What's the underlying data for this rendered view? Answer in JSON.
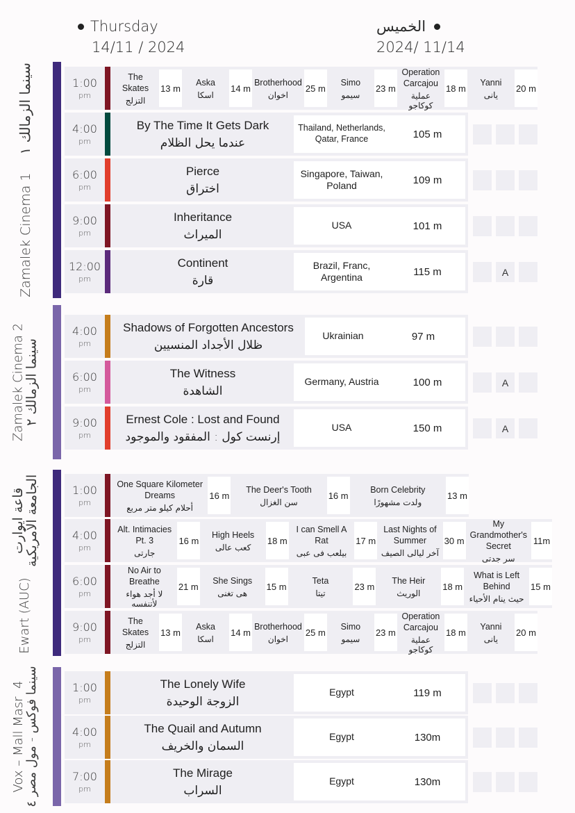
{
  "header": {
    "en_day": "Thursday",
    "en_date": "14/11 / 2024",
    "ar_day": "الخميس",
    "ar_date": "2024/ 11/14"
  },
  "colors": {
    "venue_dark": "#3e2a7c",
    "venue_light": "#7a66aa",
    "maroon": "#7e1624",
    "teal": "#024a3e",
    "red": "#e13e2c",
    "purple": "#5b2a7b",
    "orange": "#c57d1c",
    "pink": "#d45a9c",
    "row_bg": "#efeef3"
  },
  "venues": [
    {
      "name_en": "Zamalek Cinema 1",
      "name_ar": "سينما الزمالك ١",
      "screenings": [
        {
          "time": "1:00",
          "ampm": "pm",
          "type": "shorts",
          "films": [
            {
              "en": "The Skates",
              "ar": "التزلج",
              "dur": "13 m"
            },
            {
              "en": "Aska",
              "ar": "اسكا",
              "dur": "14 m"
            },
            {
              "en": "Brotherhood",
              "ar": "اخوان",
              "dur": "25 m"
            },
            {
              "en": "Simo",
              "ar": "سيمو",
              "dur": "23 m"
            },
            {
              "en": "Operation Carcajou",
              "ar": "عملية كوكاجو",
              "dur": "18 m"
            },
            {
              "en": "Yanni",
              "ar": "يانى",
              "dur": "20 m"
            }
          ]
        },
        {
          "time": "4:00",
          "ampm": "pm",
          "title_en": "By The Time It Gets Dark",
          "title_ar": "عندما يحل الظلام",
          "country": "Thailand, Netherlands, Qatar, France",
          "duration": "105 m",
          "badges": [
            "",
            "",
            ""
          ]
        },
        {
          "time": "6:00",
          "ampm": "pm",
          "title_en": "Pierce",
          "title_ar": "اختراق",
          "country": "Singapore, Taiwan, Poland",
          "duration": "109 m",
          "badges": [
            "",
            "",
            ""
          ]
        },
        {
          "time": "9:00",
          "ampm": "pm",
          "title_en": "Inheritance",
          "title_ar": "الميراث",
          "country": "USA",
          "duration": "101 m",
          "badges": [
            "",
            "",
            ""
          ]
        },
        {
          "time": "12:00",
          "ampm": "pm",
          "title_en": "Continent",
          "title_ar": "قارة",
          "country": "Brazil, Franc, Argentina",
          "duration": "115 m",
          "badges": [
            "",
            "A",
            ""
          ]
        }
      ]
    },
    {
      "name_en": "Zamalek Cinema 2",
      "name_ar": "سينما الزمالك ٢",
      "screenings": [
        {
          "time": "4:00",
          "ampm": "pm",
          "title_en": "Shadows of Forgotten Ancestors",
          "title_ar": "ظلال الأجداد المنسيين",
          "country": "Ukrainian",
          "duration": "97 m",
          "badges": [
            "",
            "",
            ""
          ]
        },
        {
          "time": "6:00",
          "ampm": "pm",
          "title_en": "The Witness",
          "title_ar": "الشاهدة",
          "country": "Germany, Austria",
          "duration": "100 m",
          "badges": [
            "",
            "A",
            ""
          ]
        },
        {
          "time": "9:00",
          "ampm": "pm",
          "title_en": "Ernest Cole : Lost and Found",
          "title_ar": "إرنست كول : المفقود والموجود",
          "country": "USA",
          "duration": "150 m",
          "badges": [
            "",
            "A",
            ""
          ]
        }
      ]
    },
    {
      "name_en": "Ewart (AUC)",
      "name_ar": "قاعة ايوارت الجامعة الأمريكية",
      "screenings": [
        {
          "time": "1:00",
          "ampm": "pm",
          "type": "shorts",
          "films": [
            {
              "en": "One Square Kilometer Dreams",
              "ar": "أحلام كيلو متر مربع",
              "dur": "16 m"
            },
            {
              "en": "The Deer's Tooth",
              "ar": "سن الغزال",
              "dur": "16 m"
            },
            {
              "en": "Born Celebrity",
              "ar": "ولدت مشهورًا",
              "dur": "13 m"
            }
          ]
        },
        {
          "time": "4:00",
          "ampm": "pm",
          "type": "shorts",
          "films": [
            {
              "en": "Alt. Intimacies Pt. 3",
              "ar": "جارتى",
              "dur": "16 m"
            },
            {
              "en": "High Heels",
              "ar": "كعب عالى",
              "dur": "18 m"
            },
            {
              "en": "I can Smell A Rat",
              "ar": "بيلعب فى عبى",
              "dur": "17 m"
            },
            {
              "en": "Last Nights of Summer",
              "ar": "آخر ليالى الصيف",
              "dur": "30 m"
            },
            {
              "en": "My Grandmother's Secret",
              "ar": "سر جدتى",
              "dur": "11m"
            }
          ]
        },
        {
          "time": "6:00",
          "ampm": "pm",
          "type": "shorts",
          "films": [
            {
              "en": "No Air to Breathe",
              "ar": "لا أجد هواء لأتنفسه",
              "dur": "21 m"
            },
            {
              "en": "She Sings",
              "ar": "هى تغنى",
              "dur": "15 m"
            },
            {
              "en": "Teta",
              "ar": "تيتا",
              "dur": "23 m"
            },
            {
              "en": "The Heir",
              "ar": "الوريث",
              "dur": "18 m"
            },
            {
              "en": "What is Left Behind",
              "ar": "حيث ينام الأحياء",
              "dur": "15 m"
            }
          ]
        },
        {
          "time": "9:00",
          "ampm": "pm",
          "type": "shorts",
          "films": [
            {
              "en": "The Skates",
              "ar": "التزلج",
              "dur": "13 m"
            },
            {
              "en": "Aska",
              "ar": "اسكا",
              "dur": "14 m"
            },
            {
              "en": "Brotherhood",
              "ar": "اخوان",
              "dur": "25 m"
            },
            {
              "en": "Simo",
              "ar": "سيمو",
              "dur": "23 m"
            },
            {
              "en": "Operation Carcajou",
              "ar": "عملية كوكاجو",
              "dur": "18 m"
            },
            {
              "en": "Yanni",
              "ar": "يانى",
              "dur": "20 m"
            }
          ]
        }
      ]
    },
    {
      "name_en": "Vox – Mall Masr  4",
      "name_ar": "سينما فوكس - مول مصر ٤",
      "screenings": [
        {
          "time": "1:00",
          "ampm": "pm",
          "title_en": "The Lonely Wife",
          "title_ar": "الزوجة الوحيدة",
          "country": "Egypt",
          "duration": "119 m",
          "badges": [
            "",
            "",
            ""
          ]
        },
        {
          "time": "4:00",
          "ampm": "pm",
          "title_en": "The Quail and Autumn",
          "title_ar": "السمان والخريف",
          "country": "Egypt",
          "duration": "130m",
          "badges": [
            "",
            "",
            ""
          ]
        },
        {
          "time": "7:00",
          "ampm": "pm",
          "title_en": "The Mirage",
          "title_ar": "السراب",
          "country": "Egypt",
          "duration": "130m",
          "badges": [
            "",
            "",
            ""
          ]
        }
      ]
    }
  ]
}
